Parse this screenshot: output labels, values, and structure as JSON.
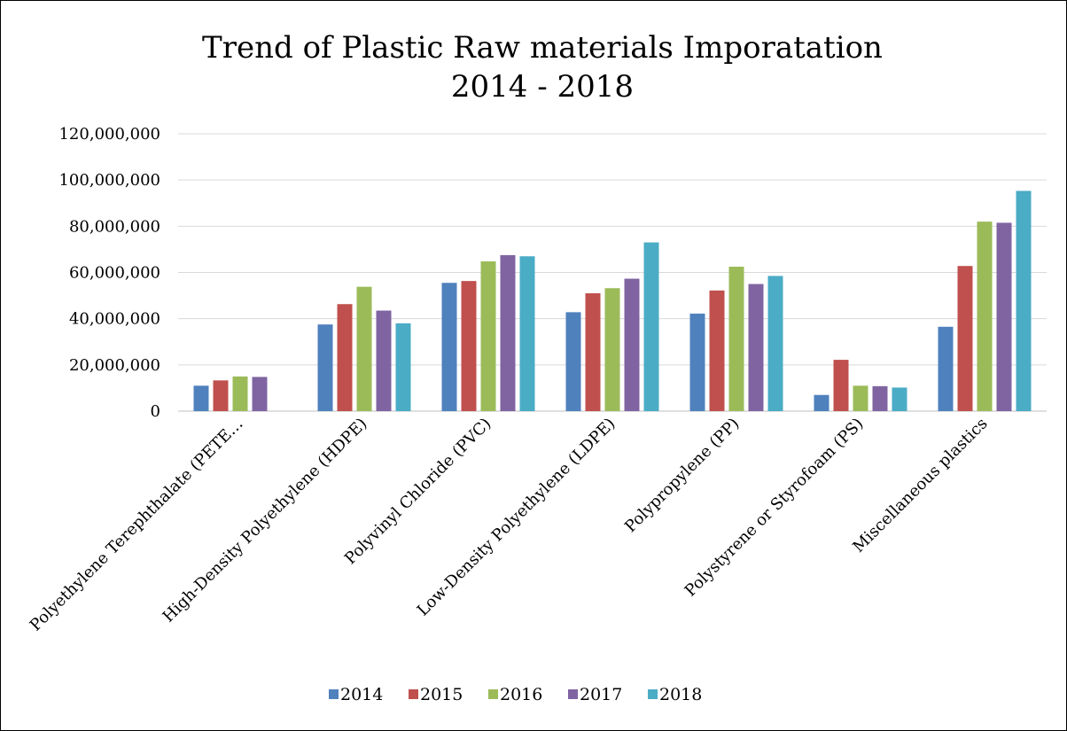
{
  "chart_data": {
    "type": "bar",
    "title": [
      "Trend of Plastic Raw materials Imporatation",
      "2014 - 2018"
    ],
    "categories": [
      "Polyethylene Terephthalate (PETE…",
      "High-Density Polyethylene (HDPE)",
      "Polyvinyl Chloride (PVC)",
      "Low-Density Polyethylene (LDPE)",
      "Polypropylene (PP)",
      "Polystyrene or Styrofoam (PS)",
      "Miscellaneous plastics"
    ],
    "series": [
      {
        "name": "2014",
        "color": "#4f81bd",
        "values": [
          11000000,
          37500000,
          55500000,
          42800000,
          42200000,
          7000000,
          36500000
        ]
      },
      {
        "name": "2015",
        "color": "#c0504d",
        "values": [
          13300000,
          46300000,
          56300000,
          51000000,
          52200000,
          22200000,
          62800000
        ]
      },
      {
        "name": "2016",
        "color": "#9bbb59",
        "values": [
          15000000,
          53800000,
          64800000,
          53200000,
          62500000,
          11000000,
          82000000
        ]
      },
      {
        "name": "2017",
        "color": "#8064a2",
        "values": [
          14800000,
          43500000,
          67500000,
          57300000,
          55000000,
          10800000,
          81500000
        ]
      },
      {
        "name": "2018",
        "color": "#4bacc6",
        "values": [
          null,
          38000000,
          67000000,
          73000000,
          58500000,
          10200000,
          95300000
        ]
      }
    ],
    "y_ticks": [
      "0",
      "20,000,000",
      "40,000,000",
      "60,000,000",
      "80,000,000",
      "100,000,000",
      "120,000,000"
    ],
    "ylim": [
      0,
      120000000
    ],
    "xlabel": "",
    "ylabel": "",
    "grid": true,
    "legend_position": "bottom"
  }
}
